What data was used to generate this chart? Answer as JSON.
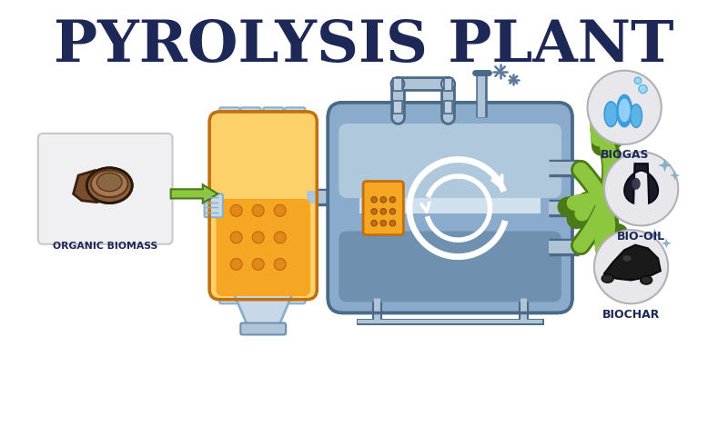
{
  "title": "PYROLYSIS PLANT",
  "title_color": "#1e2857",
  "title_fontsize": 46,
  "bg_color": "#ffffff",
  "labels": {
    "biomass": "ORGANIC BIOMASS",
    "biochar": "BIOCHAR",
    "bio_oil": "BIO-OIL",
    "biogas": "BIOGAS"
  },
  "label_color": "#1e2857",
  "arrow_color": "#8dc63f",
  "arrow_outline": "#4a7a18",
  "feeder_color_top": "#fdd16a",
  "feeder_color_bot": "#f5a623",
  "feeder_stripe": "#e8920a",
  "feeder_outline": "#c07010",
  "reactor_fill_top": "#b0c8dc",
  "reactor_fill_mid": "#8aabcc",
  "reactor_fill_bot": "#7090b0",
  "reactor_outline": "#4a6a88",
  "pipe_fill": "#b0c4d8",
  "pipe_outline": "#4a6a88",
  "panel_fill": "#f5a623",
  "panel_outline": "#c07010",
  "biomass_box": "#f0f0f2",
  "output_circle": "#e8e8ec",
  "output_outline": "#b0b0b8",
  "biochar_dark": "#2a2a2a",
  "biochar_mid": "#3a3a3a",
  "oil_dark": "#1a1a28",
  "oil_mid": "#3a3a4a",
  "flame_blue": "#5ab4e8",
  "flame_light": "#90d0f8",
  "flame_white": "#c8ecfc",
  "sparkle_color": "#8aafc8"
}
